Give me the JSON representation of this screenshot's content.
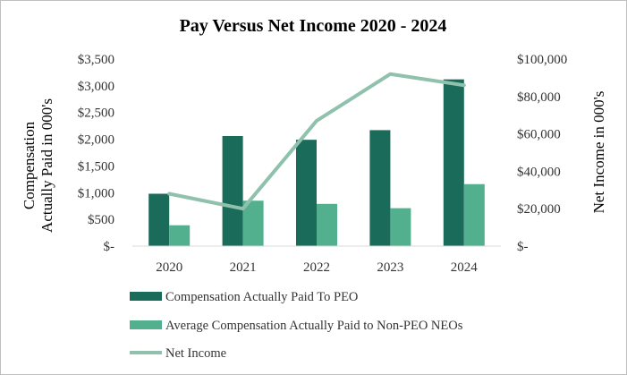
{
  "chart_data": {
    "type": "bar",
    "title": "Pay Versus Net Income 2020 - 2024",
    "categories": [
      "2020",
      "2021",
      "2022",
      "2023",
      "2024"
    ],
    "left_axis": {
      "label_line1": "Compensation",
      "label_line2": "Actually Paid in 000's",
      "ylim": [
        0,
        3500
      ],
      "ticks": [
        0,
        500,
        1000,
        1500,
        2000,
        2500,
        3000,
        3500
      ],
      "tick_labels": [
        "$-",
        "$500",
        "$1,000",
        "$1,500",
        "$2,000",
        "$2,500",
        "$3,000",
        "$3,500"
      ]
    },
    "right_axis": {
      "label": "Net Income in 000's",
      "ylim": [
        0,
        100000
      ],
      "ticks": [
        0,
        20000,
        40000,
        60000,
        80000,
        100000
      ],
      "tick_labels": [
        "$-",
        "$20,000",
        "$40,000",
        "$60,000",
        "$80,000",
        "$100,000"
      ]
    },
    "series": [
      {
        "name": "Compensation Actually Paid To PEO",
        "type": "bar",
        "axis": "left",
        "color": "#1a6b5a",
        "values": [
          980,
          2060,
          1990,
          2170,
          3120
        ]
      },
      {
        "name": "Average Compensation Actually Paid to Non-PEO NEOs",
        "type": "bar",
        "axis": "left",
        "color": "#52b08f",
        "values": [
          390,
          850,
          790,
          710,
          1160
        ]
      },
      {
        "name": "Net Income",
        "type": "line",
        "axis": "right",
        "color": "#8fc1ad",
        "values": [
          28000,
          20000,
          67000,
          92000,
          86000
        ]
      }
    ],
    "grid": false,
    "legend": "bottom"
  }
}
